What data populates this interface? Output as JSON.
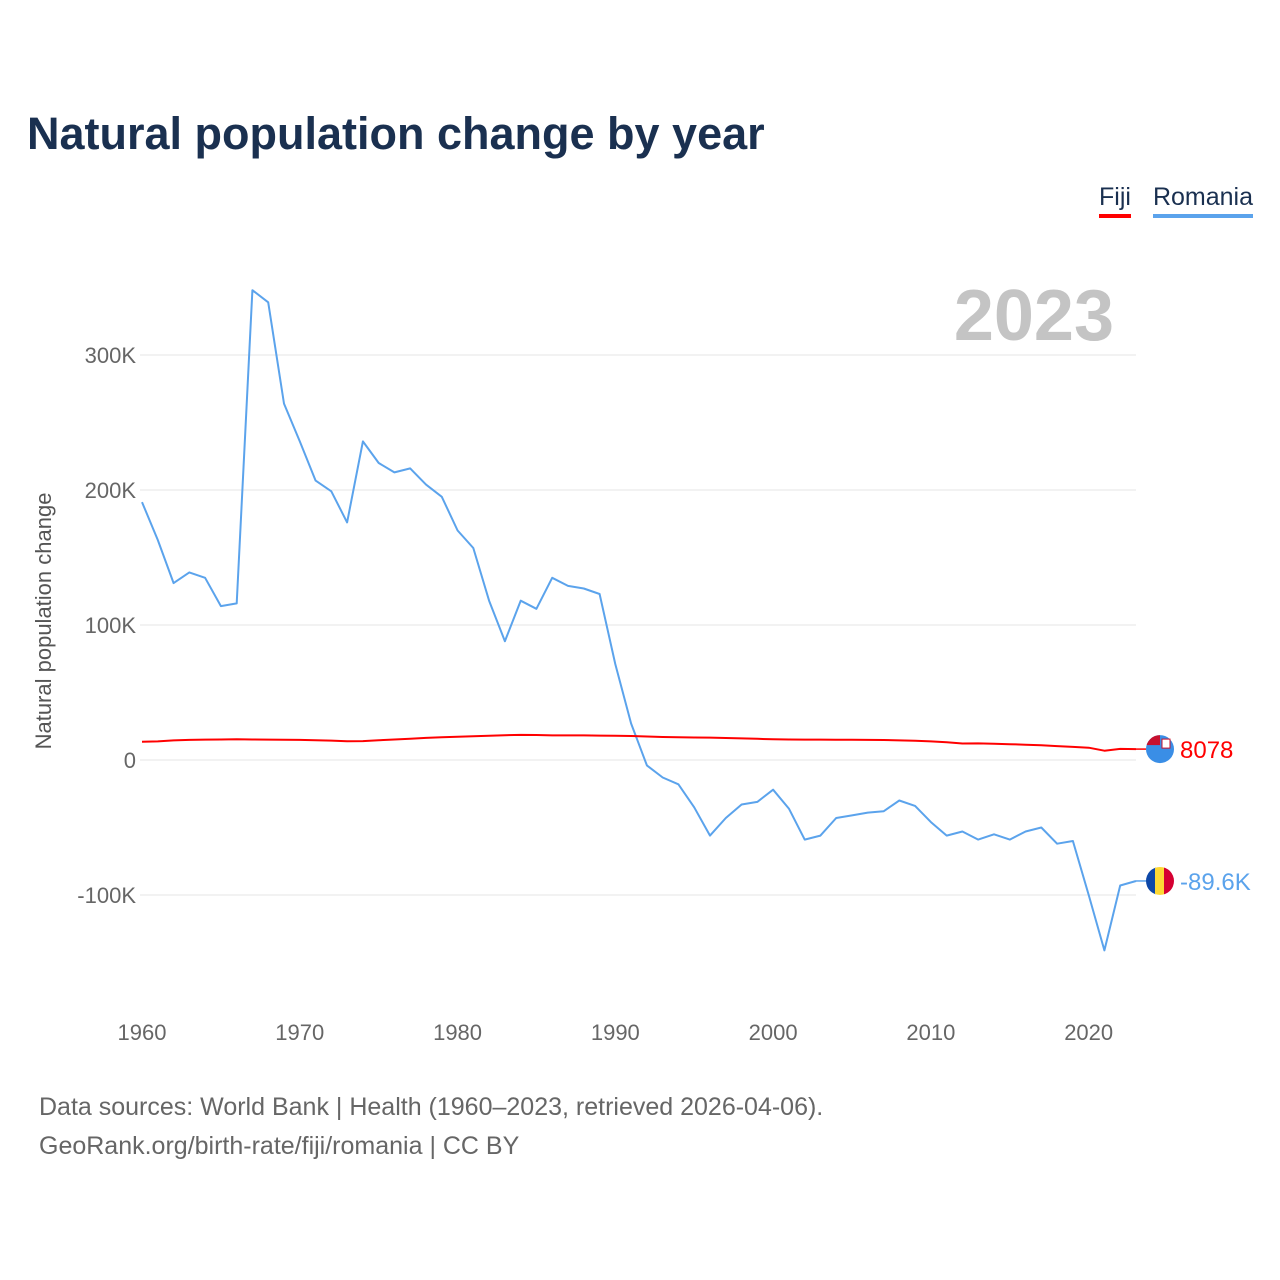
{
  "title": "Natural population change by year",
  "legend": [
    {
      "label": "Fiji",
      "color": "#ff0000"
    },
    {
      "label": "Romania",
      "color": "#5ba3ec"
    }
  ],
  "footer": {
    "line1": "Data sources: World Bank | Health (1960–2023, retrieved 2026-04-06).",
    "line2": "GeoRank.org/birth-rate/fiji/romania | CC BY"
  },
  "chart_data": {
    "type": "line",
    "title": "Natural population change by year",
    "year_label": "2023",
    "xlabel": "",
    "ylabel": "Natural population change",
    "xlim": [
      1960,
      2023
    ],
    "ylim": [
      -170000,
      370000
    ],
    "x_ticks": [
      1960,
      1970,
      1980,
      1990,
      2000,
      2010,
      2020
    ],
    "y_ticks": [
      {
        "v": 300000,
        "label": "300K"
      },
      {
        "v": 200000,
        "label": "200K"
      },
      {
        "v": 100000,
        "label": "100K"
      },
      {
        "v": 0,
        "label": "0"
      },
      {
        "v": -100000,
        "label": "-100K"
      }
    ],
    "grid": true,
    "legend_position": "top-right",
    "x": [
      1960,
      1961,
      1962,
      1963,
      1964,
      1965,
      1966,
      1967,
      1968,
      1969,
      1970,
      1971,
      1972,
      1973,
      1974,
      1975,
      1976,
      1977,
      1978,
      1979,
      1980,
      1981,
      1982,
      1983,
      1984,
      1985,
      1986,
      1987,
      1988,
      1989,
      1990,
      1991,
      1992,
      1993,
      1994,
      1995,
      1996,
      1997,
      1998,
      1999,
      2000,
      2001,
      2002,
      2003,
      2004,
      2005,
      2006,
      2007,
      2008,
      2009,
      2010,
      2011,
      2012,
      2013,
      2014,
      2015,
      2016,
      2017,
      2018,
      2019,
      2020,
      2021,
      2022,
      2023
    ],
    "series": [
      {
        "name": "Fiji",
        "color": "#ff0000",
        "end_label": "8078",
        "values": [
          13500,
          13800,
          14500,
          14900,
          15100,
          15200,
          15300,
          15200,
          15100,
          15000,
          14900,
          14700,
          14400,
          13900,
          14000,
          14600,
          15200,
          15700,
          16400,
          16800,
          17200,
          17600,
          18000,
          18400,
          18600,
          18500,
          18200,
          18200,
          18200,
          18100,
          17900,
          17800,
          17400,
          17000,
          16800,
          16700,
          16600,
          16300,
          16000,
          15700,
          15300,
          15200,
          15100,
          15100,
          15000,
          15000,
          14900,
          14800,
          14500,
          14200,
          13800,
          13200,
          12200,
          12300,
          12100,
          11700,
          11300,
          10900,
          10300,
          9700,
          9100,
          6900,
          8200,
          8078
        ]
      },
      {
        "name": "Romania",
        "color": "#5ba3ec",
        "end_label": "-89.6K",
        "values": [
          191000,
          163000,
          131000,
          139000,
          135000,
          114000,
          116000,
          348000,
          339000,
          264000,
          236000,
          207000,
          199000,
          176000,
          236000,
          220000,
          213000,
          216000,
          204000,
          195000,
          170000,
          157000,
          118000,
          88000,
          118000,
          112000,
          135000,
          129000,
          127000,
          123000,
          71000,
          27000,
          -4000,
          -13000,
          -18000,
          -35000,
          -56000,
          -43000,
          -33000,
          -31000,
          -22000,
          -36000,
          -59000,
          -56000,
          -43000,
          -41000,
          -39000,
          -38000,
          -30000,
          -34000,
          -46000,
          -56000,
          -53000,
          -59000,
          -55000,
          -59000,
          -53000,
          -50000,
          -62000,
          -60000,
          -100000,
          -141000,
          -93000,
          -89600
        ]
      }
    ]
  }
}
